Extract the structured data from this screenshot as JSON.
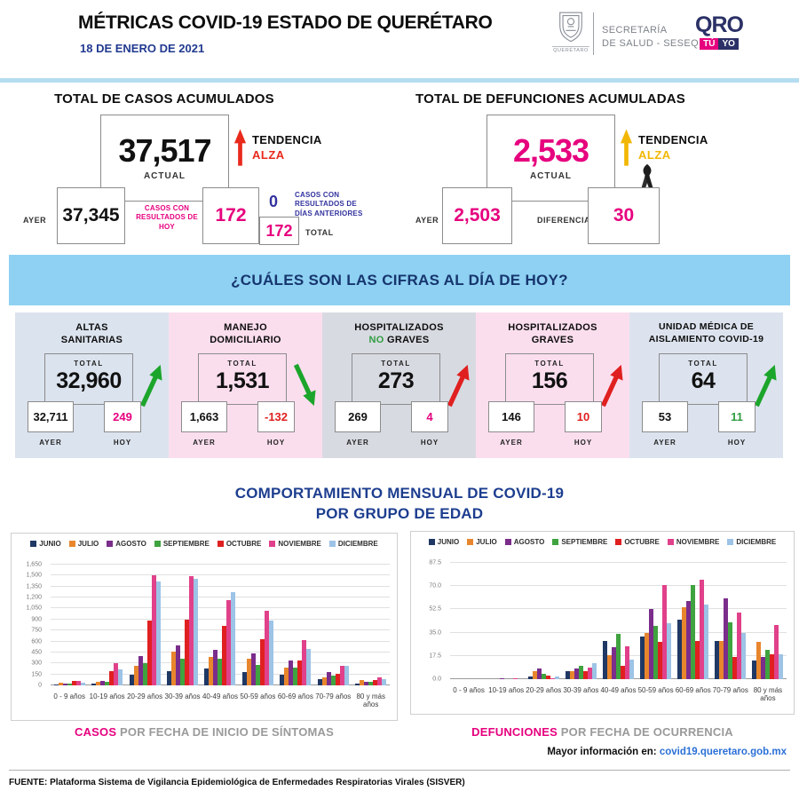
{
  "header": {
    "title": "MÉTRICAS COVID-19 ESTADO DE QUERÉTARO",
    "date": "18 DE ENERO DE 2021",
    "crest_caption": "QUERÉTARO",
    "secretaria_line1": "SECRETARÍA",
    "secretaria_line2": "DE SALUD - SESEQ",
    "logo_qro": "QRO",
    "logo_tu": "TÚ",
    "logo_yo": "YO",
    "logo_pink": "#e6007e",
    "logo_navy": "#2b3166"
  },
  "banner": {
    "question": "¿CUÁLES SON LAS CIFRAS AL DÍA DE HOY?",
    "bg": "#8ed1f2"
  },
  "cases": {
    "title": "TOTAL DE CASOS ACUMULADOS",
    "actual_value": "37,517",
    "actual_label": "ACTUAL",
    "trend_label": "TENDENCIA",
    "trend_value": "ALZA",
    "trend_color": "#e8291c",
    "ayer_label": "AYER",
    "ayer_value": "37,345",
    "today_label": "CASOS CON RESULTADOS DE HOY",
    "today_value": "172",
    "previous_value": "0",
    "previous_label": "CASOS CON RESULTADOS DE DÍAS ANTERIORES",
    "total_value": "172",
    "total_label": "TOTAL"
  },
  "deaths": {
    "title": "TOTAL DE DEFUNCIONES ACUMULADAS",
    "actual_value": "2,533",
    "actual_label": "ACTUAL",
    "trend_label": "TENDENCIA",
    "trend_value": "ALZA",
    "trend_color": "#f2b705",
    "ayer_label": "AYER",
    "ayer_value": "2,503",
    "diff_label": "DIFERENCIA",
    "diff_value": "30"
  },
  "cards": [
    {
      "line1": "ALTAS",
      "line2_accent": "",
      "line2": "SANITARIAS",
      "total_label": "TOTAL",
      "total": "32,960",
      "ayer": "32,711",
      "hoy": "249",
      "ayer_label": "AYER",
      "hoy_label": "HOY",
      "trend": "up",
      "bg": "#dbe3ee",
      "hoy_color": "#e6007e",
      "arrow_color": "#1ca52b"
    },
    {
      "line1": "MANEJO",
      "line2_accent": "",
      "line2": "DOMICILIARIO",
      "total_label": "TOTAL",
      "total": "1,531",
      "ayer": "1,663",
      "hoy": "-132",
      "ayer_label": "AYER",
      "hoy_label": "HOY",
      "trend": "down",
      "bg": "#fbdeee",
      "hoy_color": "#e02020",
      "arrow_color": "#1ca52b"
    },
    {
      "line1": "HOSPITALIZADOS",
      "line2_accent": "NO",
      "accent_color": "#2f9e41",
      "line2": " GRAVES",
      "total_label": "TOTAL",
      "total": "273",
      "ayer": "269",
      "hoy": "4",
      "ayer_label": "AYER",
      "hoy_label": "HOY",
      "trend": "up",
      "bg": "#d8dae2",
      "hoy_color": "#e6007e",
      "arrow_color": "#e02020"
    },
    {
      "line1": "HOSPITALIZADOS",
      "line2_accent": "",
      "line2": "GRAVES",
      "total_label": "TOTAL",
      "total": "156",
      "ayer": "146",
      "hoy": "10",
      "ayer_label": "AYER",
      "hoy_label": "HOY",
      "trend": "up",
      "bg": "#fbdeee",
      "hoy_color": "#e02020",
      "arrow_color": "#e02020"
    },
    {
      "line1": "UNIDAD MÉDICA DE",
      "line2_accent": "",
      "line2": "AISLAMIENTO COVID-19",
      "total_label": "TOTAL",
      "total": "64",
      "ayer": "53",
      "hoy": "11",
      "ayer_label": "AYER",
      "hoy_label": "HOY",
      "trend": "up",
      "bg": "#dce3ee",
      "hoy_color": "#2f9e41",
      "arrow_color": "#1ca52b"
    }
  ],
  "charts_section": {
    "title_line1": "COMPORTAMIENTO MENSUAL DE COVID-19",
    "title_line2": "POR GRUPO DE EDAD"
  },
  "chart_data": [
    {
      "type": "bar",
      "title": "CASOS POR FECHA DE INICIO DE SÍNTOMAS",
      "categories": [
        "0 - 9 años",
        "10-19 años",
        "20-29 años",
        "30-39 años",
        "40-49 años",
        "50-59 años",
        "60-69 años",
        "70-79 años",
        "80 y más años"
      ],
      "series": [
        {
          "name": "JUNIO",
          "color": "#1f3864",
          "values": [
            15,
            20,
            150,
            190,
            230,
            180,
            145,
            80,
            30
          ]
        },
        {
          "name": "JULIO",
          "color": "#e8862d",
          "values": [
            35,
            45,
            270,
            460,
            390,
            360,
            240,
            110,
            70
          ]
        },
        {
          "name": "AGOSTO",
          "color": "#7b2d8b",
          "values": [
            25,
            60,
            400,
            550,
            490,
            440,
            340,
            185,
            50
          ]
        },
        {
          "name": "SEPTIEMBRE",
          "color": "#3fa33f",
          "values": [
            20,
            45,
            305,
            370,
            365,
            285,
            245,
            130,
            45
          ]
        },
        {
          "name": "OCTUBRE",
          "color": "#e02020",
          "values": [
            60,
            190,
            890,
            900,
            810,
            630,
            345,
            155,
            70
          ]
        },
        {
          "name": "NOVIEMBRE",
          "color": "#e0418a",
          "values": [
            60,
            305,
            1500,
            1490,
            1165,
            1020,
            625,
            270,
            105
          ]
        },
        {
          "name": "DICIEMBRE",
          "color": "#9dc3e6",
          "values": [
            35,
            220,
            1425,
            1455,
            1270,
            890,
            500,
            270,
            90
          ]
        }
      ],
      "ylim": [
        0,
        1650
      ],
      "yticks": [
        "0",
        "150",
        "300",
        "450",
        "600",
        "750",
        "900",
        "1,050",
        "1,200",
        "1,350",
        "1,500",
        "1,650"
      ],
      "grid": true,
      "legend_position": "top"
    },
    {
      "type": "bar",
      "title": "DEFUNCIONES POR FECHA DE OCURRENCIA",
      "categories": [
        "0 - 9 años",
        "10-19 años",
        "20-29 años",
        "30-39 años",
        "40-49 años",
        "50-59 años",
        "60-69 años",
        "70-79 años",
        "80 y más años"
      ],
      "series": [
        {
          "name": "JUNIO",
          "color": "#1f3864",
          "values": [
            0,
            0,
            2,
            6,
            29,
            32,
            45,
            29,
            14
          ]
        },
        {
          "name": "JULIO",
          "color": "#e8862d",
          "values": [
            0,
            0,
            6,
            6,
            18,
            35,
            54,
            29,
            28
          ]
        },
        {
          "name": "AGOSTO",
          "color": "#7b2d8b",
          "values": [
            0,
            1,
            8,
            8,
            24,
            53,
            59,
            61,
            17
          ]
        },
        {
          "name": "SEPTIEMBRE",
          "color": "#3fa33f",
          "values": [
            0,
            0,
            4,
            10,
            34,
            40,
            71,
            43,
            22
          ]
        },
        {
          "name": "OCTUBRE",
          "color": "#e02020",
          "values": [
            0,
            0,
            3,
            6,
            10,
            28,
            29,
            17,
            19
          ]
        },
        {
          "name": "NOVIEMBRE",
          "color": "#e0418a",
          "values": [
            0,
            1,
            1,
            9,
            25,
            71,
            75,
            50,
            41
          ]
        },
        {
          "name": "DICIEMBRE",
          "color": "#9dc3e6",
          "values": [
            0,
            0,
            2,
            12,
            15,
            42,
            56,
            35,
            19
          ]
        }
      ],
      "ylim": [
        0,
        87.5
      ],
      "yticks": [
        "0.0",
        "17.5",
        "35.0",
        "52.5",
        "70.0",
        "87.5"
      ],
      "grid": true,
      "legend_position": "top"
    }
  ],
  "captions": {
    "left_accent": "CASOS",
    "left_rest": " POR FECHA DE INICIO DE SÍNTOMAS",
    "right_accent": "DEFUNCIONES",
    "right_rest": " POR FECHA DE OCURRENCIA",
    "accent_color": "#e6007e"
  },
  "footer": {
    "info_label": "Mayor información en: ",
    "info_link": "covid19.queretaro.gob.mx",
    "source": "FUENTE: Plataforma Sistema  de Vigilancia Epidemiológica de Enfermedades Respiratorias Virales (SISVER)"
  }
}
